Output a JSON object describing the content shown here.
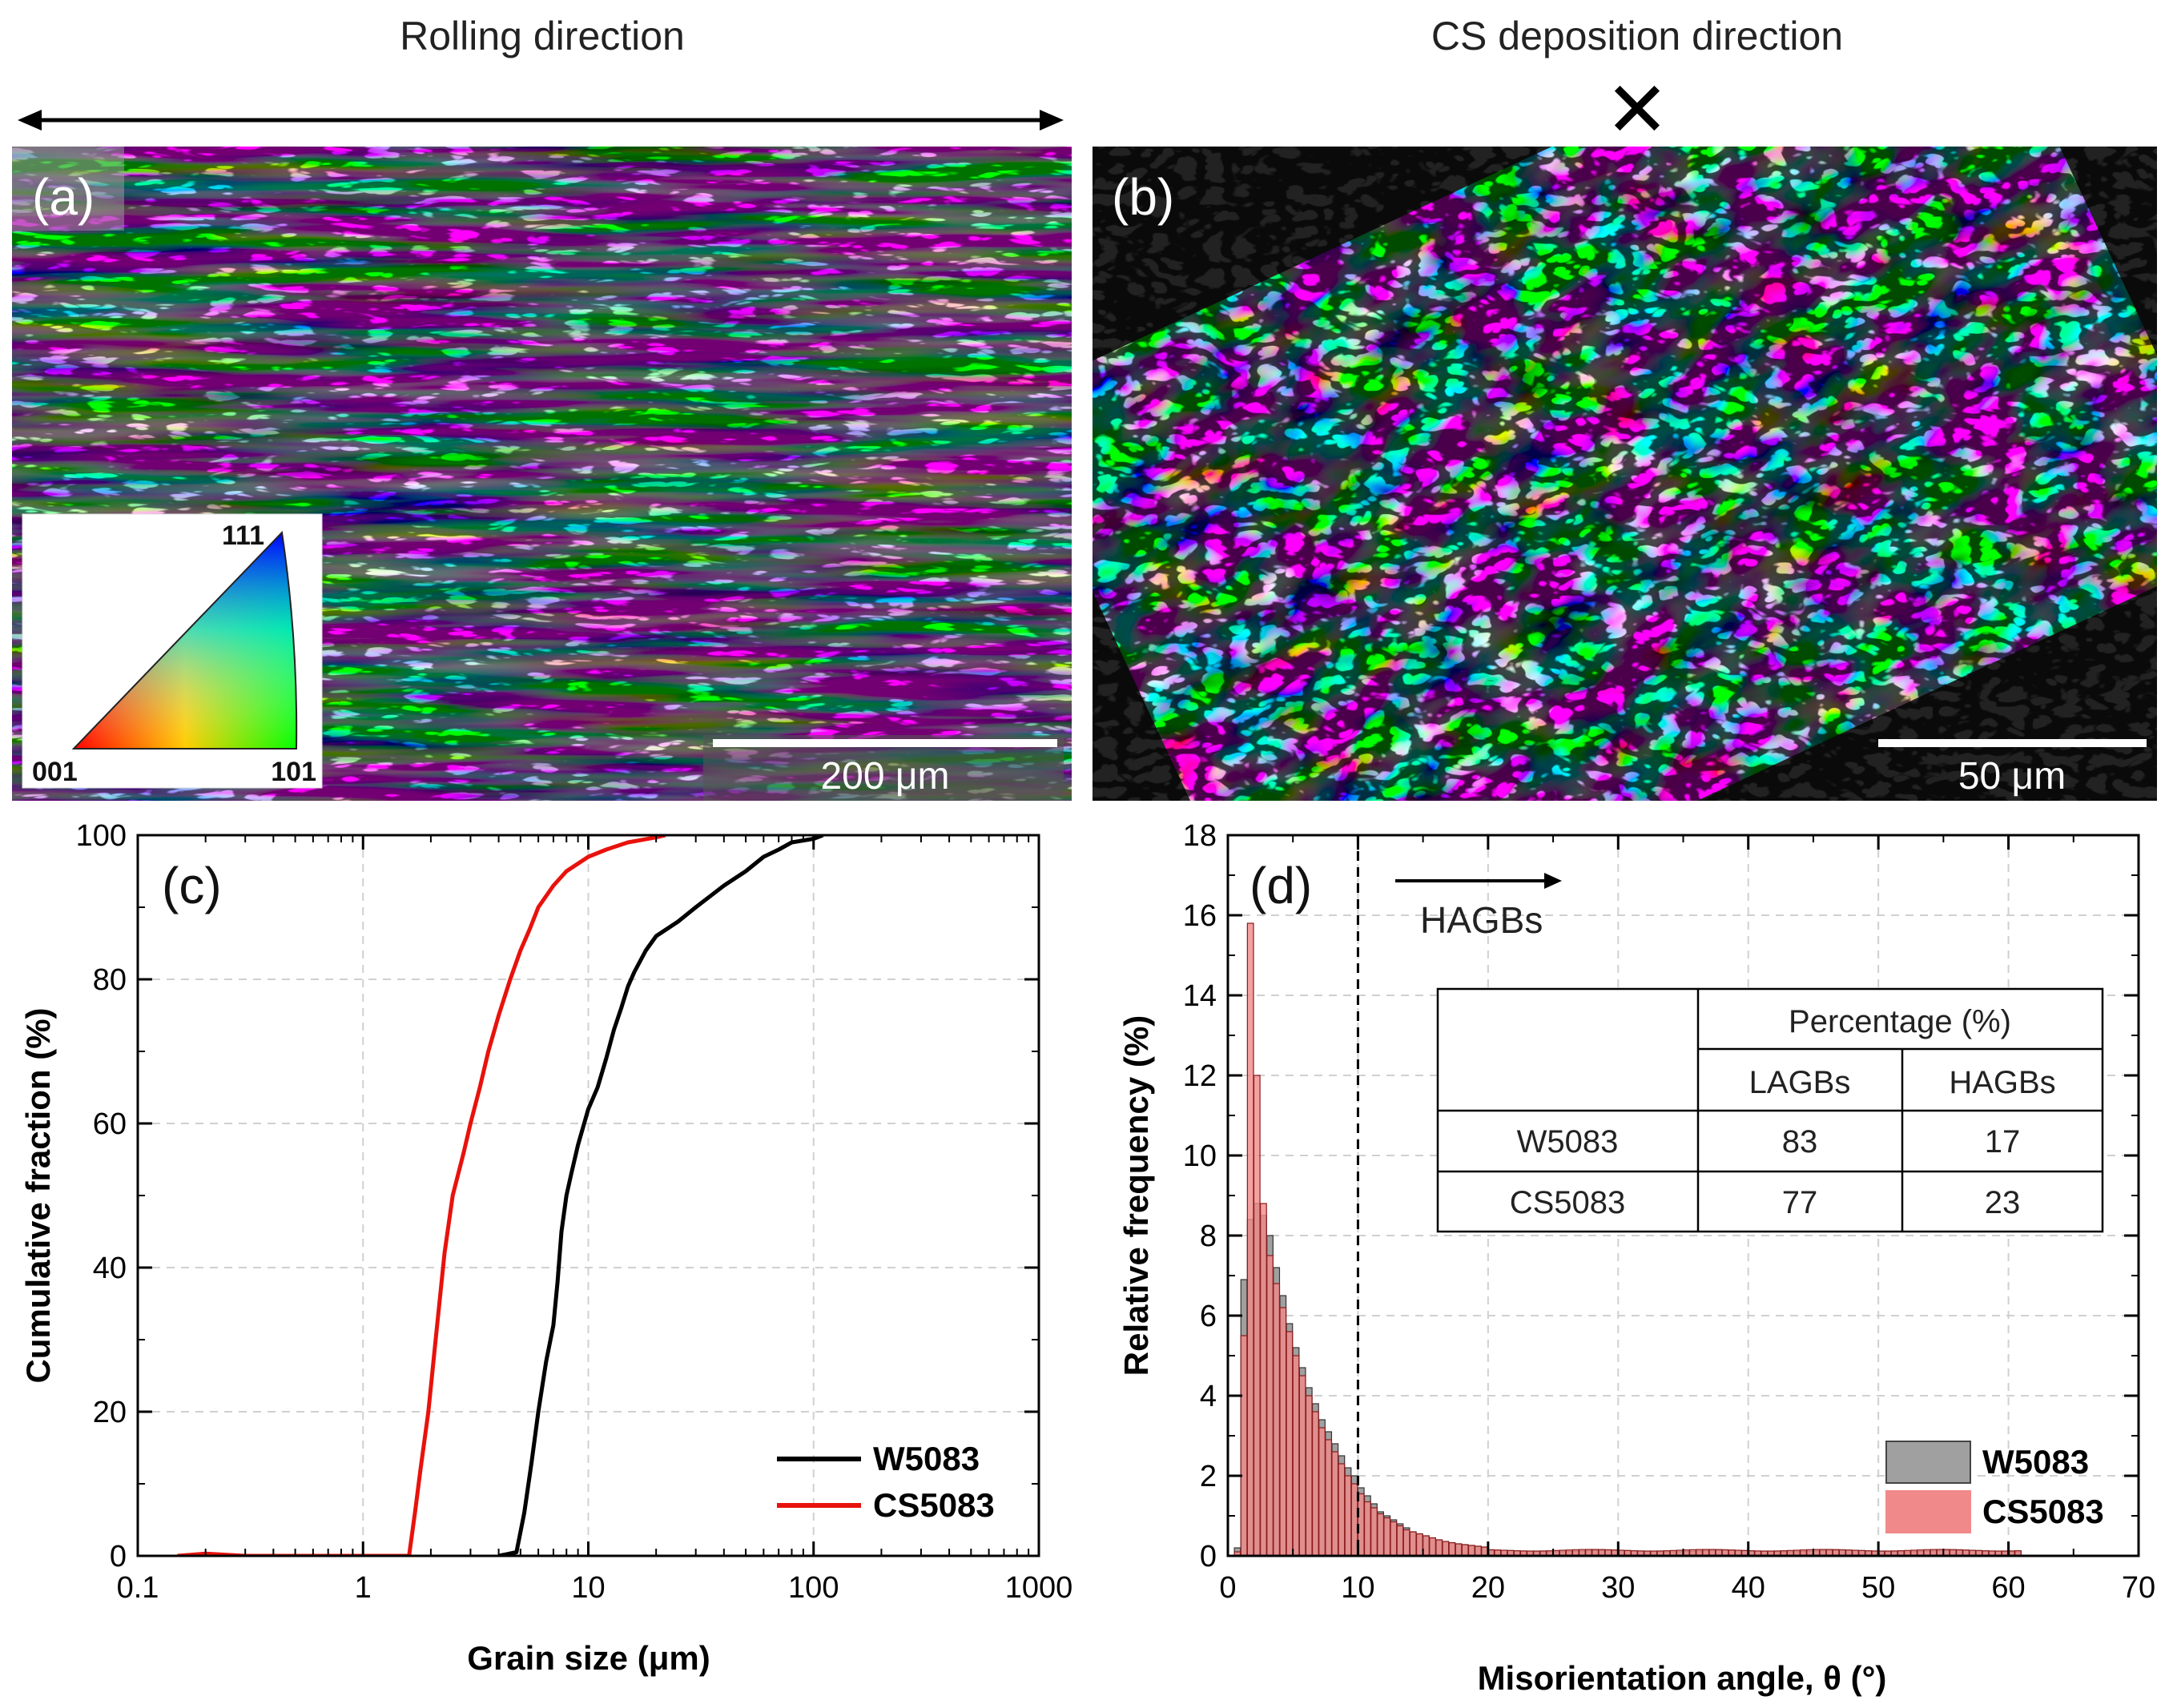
{
  "headers": {
    "left": "Rolling direction",
    "right": "CS deposition direction",
    "cross_symbol": "✕"
  },
  "panel_a": {
    "label": "(a)",
    "scalebar": "200 μm",
    "ipf": {
      "top": "111",
      "left": "001",
      "right": "101"
    }
  },
  "panel_b": {
    "label": "(b)",
    "scalebar": "50 μm"
  },
  "chart_data": [
    {
      "id": "c",
      "type": "line",
      "label": "(c)",
      "xscale": "log",
      "xlabel": "Grain size (μm)",
      "ylabel": "Cumulative fraction (%)",
      "xlim": [
        0.1,
        1000
      ],
      "ylim": [
        0,
        100
      ],
      "xticks": [
        0.1,
        1,
        10,
        100,
        1000
      ],
      "xtick_labels": [
        "0.1",
        "1",
        "10",
        "100",
        "1000"
      ],
      "yticks": [
        0,
        20,
        40,
        60,
        80,
        100
      ],
      "ytick_labels": [
        "0",
        "20",
        "40",
        "60",
        "80",
        "100"
      ],
      "legend_position": "bottom-right",
      "series": [
        {
          "name": "W5083",
          "color": "#000000",
          "points": [
            [
              4.0,
              0
            ],
            [
              4.8,
              0.5
            ],
            [
              5.2,
              6
            ],
            [
              5.6,
              13
            ],
            [
              6.0,
              20
            ],
            [
              6.5,
              27
            ],
            [
              7.0,
              32
            ],
            [
              7.3,
              38
            ],
            [
              7.6,
              45
            ],
            [
              8.0,
              50
            ],
            [
              8.4,
              53
            ],
            [
              9.0,
              57
            ],
            [
              10.0,
              62
            ],
            [
              11.0,
              65
            ],
            [
              12.0,
              69
            ],
            [
              13.0,
              73
            ],
            [
              14.0,
              76
            ],
            [
              15.0,
              79
            ],
            [
              16.0,
              81
            ],
            [
              18.0,
              84
            ],
            [
              20.0,
              86
            ],
            [
              25.0,
              88
            ],
            [
              30.0,
              90
            ],
            [
              40.0,
              93
            ],
            [
              50.0,
              95
            ],
            [
              60.0,
              97
            ],
            [
              70.0,
              98
            ],
            [
              80.0,
              99
            ],
            [
              100.0,
              99.5
            ],
            [
              110.0,
              100
            ]
          ]
        },
        {
          "name": "CS5083",
          "color": "#e8120c",
          "points": [
            [
              0.15,
              0
            ],
            [
              0.2,
              0.3
            ],
            [
              0.3,
              0
            ],
            [
              1.0,
              0
            ],
            [
              1.6,
              0
            ],
            [
              1.7,
              6
            ],
            [
              1.8,
              12
            ],
            [
              1.95,
              20
            ],
            [
              2.1,
              30
            ],
            [
              2.3,
              42
            ],
            [
              2.5,
              50
            ],
            [
              2.8,
              56
            ],
            [
              3.0,
              60
            ],
            [
              3.3,
              65
            ],
            [
              3.6,
              70
            ],
            [
              4.0,
              75
            ],
            [
              4.5,
              80
            ],
            [
              5.0,
              84
            ],
            [
              5.5,
              87
            ],
            [
              6.0,
              90
            ],
            [
              7.0,
              93
            ],
            [
              8.0,
              95
            ],
            [
              10.0,
              97
            ],
            [
              12.0,
              98
            ],
            [
              15.0,
              99
            ],
            [
              20.0,
              99.7
            ],
            [
              22.0,
              100
            ]
          ]
        }
      ]
    },
    {
      "id": "d",
      "type": "bar",
      "label": "(d)",
      "xlabel": "Misorientation angle, θ (°)",
      "ylabel": "Relative frequency (%)",
      "xlim": [
        0,
        70
      ],
      "ylim": [
        0,
        18
      ],
      "xticks": [
        0,
        10,
        20,
        30,
        40,
        50,
        60,
        70
      ],
      "yticks": [
        0,
        2,
        4,
        6,
        8,
        10,
        12,
        14,
        16,
        18
      ],
      "bin_width": 0.5,
      "threshold_line": 10,
      "annotation": "HAGBs",
      "legend_position": "bottom-right",
      "series": [
        {
          "name": "W5083",
          "color": "#a0a0a0",
          "values": [
            0.0,
            0.2,
            6.9,
            8.4,
            8.8,
            8.5,
            8.0,
            7.2,
            6.5,
            5.8,
            5.2,
            4.7,
            4.2,
            3.8,
            3.4,
            3.1,
            2.8,
            2.5,
            2.2,
            2.0,
            1.7,
            1.5,
            1.3,
            1.1,
            1.0,
            0.9,
            0.8,
            0.7,
            0.6,
            0.55,
            0.5,
            0.45,
            0.4,
            0.35,
            0.32,
            0.3,
            0.28,
            0.26,
            0.24,
            0.22
          ]
        },
        {
          "name": "CS5083",
          "color": "#f08a8a",
          "values": [
            0.0,
            0.1,
            5.5,
            15.8,
            12.0,
            8.8,
            7.5,
            6.8,
            6.2,
            5.6,
            5.0,
            4.5,
            4.0,
            3.6,
            3.2,
            2.9,
            2.6,
            2.3,
            2.0,
            1.8,
            1.55,
            1.35,
            1.2,
            1.05,
            0.95,
            0.85,
            0.75,
            0.65,
            0.6,
            0.55,
            0.5,
            0.45,
            0.4,
            0.36,
            0.33,
            0.3,
            0.28,
            0.26,
            0.24,
            0.22
          ]
        }
      ],
      "tail_level": {
        "W5083": 0.12,
        "CS5083": 0.14,
        "end_angle": 61
      },
      "table": {
        "header": "Percentage (%)",
        "columns": [
          "LAGBs",
          "HAGBs"
        ],
        "rows": [
          {
            "name": "W5083",
            "values": [
              "83",
              "17"
            ]
          },
          {
            "name": "CS5083",
            "values": [
              "77",
              "23"
            ]
          }
        ]
      }
    }
  ]
}
